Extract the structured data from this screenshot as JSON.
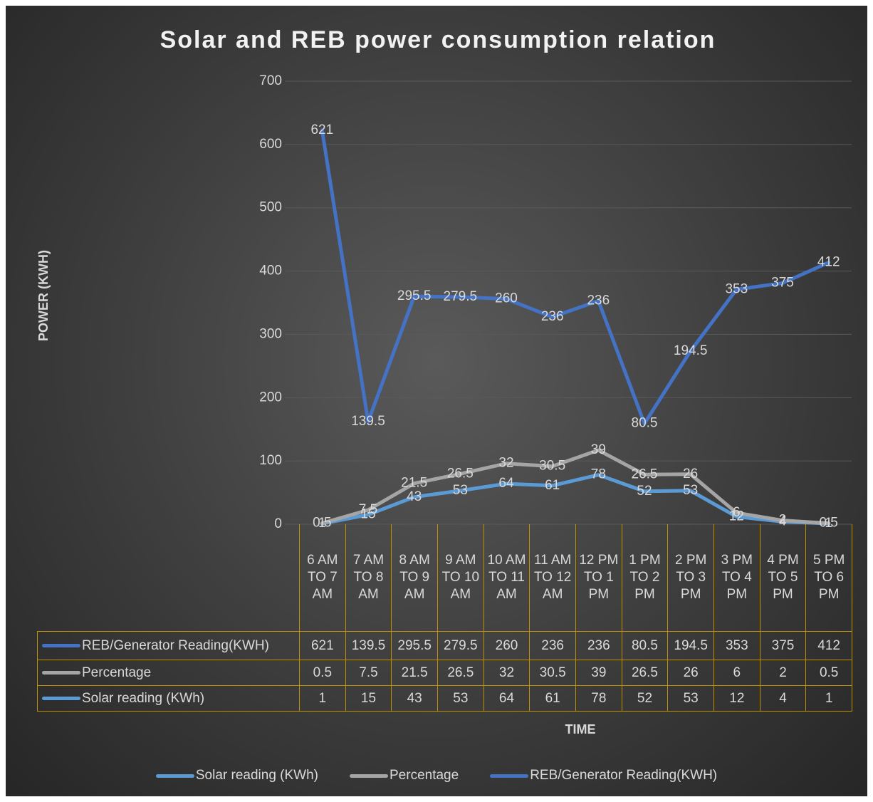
{
  "chart_data": {
    "type": "line",
    "stacked": true,
    "title": "Solar and  REB power consumption relation",
    "x_label": "TIME",
    "y_label": "POWER (KWH)",
    "categories": [
      "6 AM TO 7 AM",
      "7 AM TO 8 AM",
      "8 AM TO 9 AM",
      "9 AM TO 10 AM",
      "10 AM TO 11 AM",
      "11 AM TO 12 AM",
      "12 PM TO 1 PM",
      "1 PM TO 2 PM",
      "2 PM TO 3 PM",
      "3 PM TO 4 PM",
      "4 PM TO 5 PM",
      "5 PM TO 6 PM"
    ],
    "series": [
      {
        "name": "Solar reading (KWh)",
        "color": "#5b9bd5",
        "values": [
          1,
          15,
          43,
          53,
          64,
          61,
          78,
          52,
          53,
          12,
          4,
          1
        ]
      },
      {
        "name": "Percentage",
        "color": "#a5a5a5",
        "values": [
          0.5,
          7.5,
          21.5,
          26.5,
          32,
          30.5,
          39,
          26.5,
          26,
          6,
          2,
          0.5
        ]
      },
      {
        "name": "REB/Generator Reading(KWH)",
        "color": "#4472c4",
        "values": [
          621,
          139.5,
          295.5,
          279.5,
          260,
          236,
          236,
          80.5,
          194.5,
          353,
          375,
          412
        ]
      }
    ],
    "ylim": [
      0,
      700
    ],
    "yticks": [
      0,
      100,
      200,
      300,
      400,
      500,
      600,
      700
    ],
    "grid": true,
    "legend": "bottom",
    "data_table": true
  }
}
